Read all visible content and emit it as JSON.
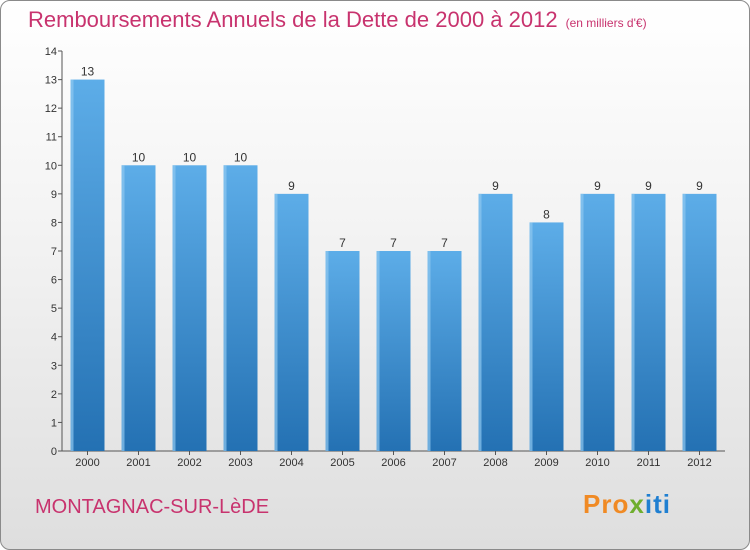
{
  "title": "Remboursements Annuels de la Dette de 2000 à 2012",
  "subtitle": "(en milliers d'€)",
  "commune": "MONTAGNAC-SUR-LèDE",
  "logo": {
    "text": "Proxiti",
    "letters": [
      "P",
      "r",
      "o",
      "x",
      "i",
      "t",
      "i"
    ],
    "colors": [
      "#f08a24",
      "#f08a24",
      "#f08a24",
      "#6fae2e",
      "#1f7fd1",
      "#1f7fd1",
      "#1f7fd1"
    ]
  },
  "colors": {
    "title": "#c8336e",
    "bar_light": "#5dade8",
    "bar_dark": "#2471b3"
  },
  "chart_data": {
    "type": "bar",
    "title": "Remboursements Annuels de la Dette de 2000 à 2012",
    "xlabel": "",
    "ylabel": "",
    "ylim": [
      0,
      14
    ],
    "yticks": [
      0,
      1,
      2,
      3,
      4,
      5,
      6,
      7,
      8,
      9,
      10,
      11,
      12,
      13,
      14
    ],
    "grid": false,
    "categories": [
      "2000",
      "2001",
      "2002",
      "2003",
      "2004",
      "2005",
      "2006",
      "2007",
      "2008",
      "2009",
      "2010",
      "2011",
      "2012"
    ],
    "values": [
      13,
      10,
      10,
      10,
      9,
      7,
      7,
      7,
      9,
      8,
      9,
      9,
      9
    ]
  }
}
